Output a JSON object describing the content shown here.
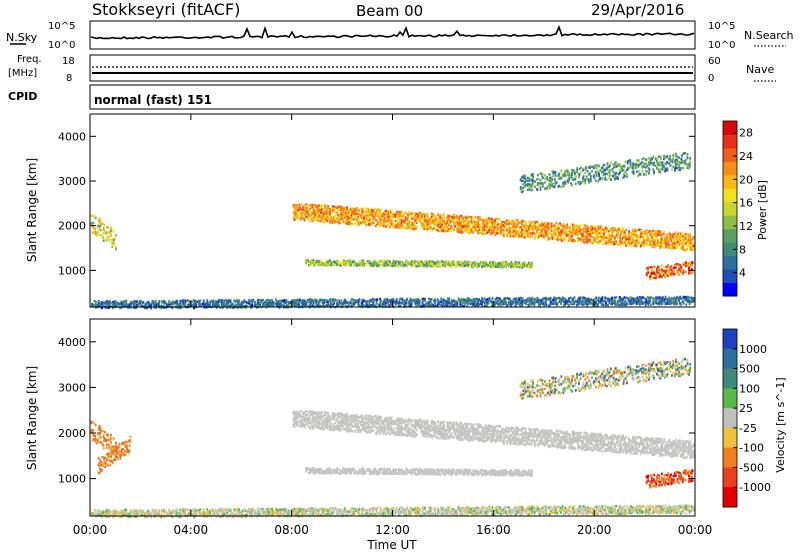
{
  "header": {
    "station": "Stokkseyri (fitACF)",
    "beam": "Beam 00",
    "date": "29/Apr/2016"
  },
  "noise_panel": {
    "left_label": "N.Sky",
    "right_label": "N.Search",
    "left_ticks": [
      "10^5",
      "10^0"
    ],
    "right_ticks": [
      "10^5",
      "10^0"
    ]
  },
  "freq_panel": {
    "left_label_1": "Freq.",
    "left_label_2": "[MHz]",
    "left_ticks": [
      "18",
      "8"
    ],
    "right_label": "Nave",
    "right_ticks": [
      "60",
      "0"
    ]
  },
  "cpid": {
    "label": "CPID",
    "value": "normal (fast) 151"
  },
  "chart_data": [
    {
      "type": "heatmap",
      "title": "Power",
      "ylabel": "Slant Range [km]",
      "xlabel": "",
      "x_ticks": [
        "00:00",
        "04:00",
        "08:00",
        "12:00",
        "16:00",
        "20:00",
        "00:00"
      ],
      "x_range_hours": [
        0,
        24
      ],
      "y_ticks": [
        1000,
        2000,
        3000,
        4000
      ],
      "ylim": [
        180,
        4500
      ],
      "colorbar": {
        "label": "Power [dB]",
        "ticks": [
          4,
          8,
          12,
          16,
          20,
          24,
          28
        ],
        "range": [
          0,
          30
        ],
        "colors": [
          "#0000ff",
          "#1d4fb7",
          "#2f6f9e",
          "#3f8a78",
          "#58a060",
          "#8cc044",
          "#c8d430",
          "#f0e020",
          "#f8b818",
          "#f89018",
          "#f06018",
          "#e83018",
          "#d80808"
        ]
      },
      "features": [
        {
          "name": "main band",
          "t_start": 8.0,
          "t_end": 24.0,
          "range_start_km": 2350,
          "range_end_km": 1650,
          "power_db": [
            16,
            26
          ]
        },
        {
          "name": "lower band",
          "t_start": 8.5,
          "t_end": 17.5,
          "range_start_km": 1200,
          "range_end_km": 1150,
          "power_db": [
            8,
            18
          ]
        },
        {
          "name": "upper sporadic",
          "t_start": 17.0,
          "t_end": 23.8,
          "range_start_km": 2950,
          "range_end_km": 3500,
          "power_db": [
            4,
            14
          ]
        },
        {
          "name": "early patch",
          "t_start": 0.0,
          "t_end": 1.0,
          "range_start_km": 2100,
          "range_end_km": 1700,
          "power_db": [
            10,
            22
          ]
        },
        {
          "name": "late strong",
          "t_start": 22.0,
          "t_end": 23.9,
          "range_start_km": 950,
          "range_end_km": 1100,
          "power_db": [
            18,
            30
          ]
        },
        {
          "name": "ground scatter",
          "t_start": 0.0,
          "t_end": 24.0,
          "range_start_km": 250,
          "range_end_km": 350,
          "power_db": [
            2,
            10
          ]
        }
      ]
    },
    {
      "type": "heatmap",
      "title": "Velocity",
      "ylabel": "Slant Range [km]",
      "xlabel": "Time UT",
      "x_ticks": [
        "00:00",
        "04:00",
        "08:00",
        "12:00",
        "16:00",
        "20:00",
        "00:00"
      ],
      "x_range_hours": [
        0,
        24
      ],
      "y_ticks": [
        1000,
        2000,
        3000,
        4000
      ],
      "ylim": [
        180,
        4500
      ],
      "colorbar": {
        "label": "Velocity [m s^-1]",
        "ticks": [
          1000,
          500,
          100,
          25,
          -25,
          -100,
          -500,
          -1000
        ],
        "colors": [
          "#2040c0",
          "#2f6f9e",
          "#3f8a78",
          "#5ab84a",
          "#c0c0c0",
          "#f0c040",
          "#f08020",
          "#e84020",
          "#e00000"
        ]
      },
      "features": [
        {
          "name": "main band",
          "t_start": 8.0,
          "t_end": 24.0,
          "range_start_km": 2350,
          "range_end_km": 1650,
          "velocity": "ground scatter (~0)"
        },
        {
          "name": "lower band",
          "t_start": 8.5,
          "t_end": 17.5,
          "range_start_km": 1200,
          "range_end_km": 1150,
          "velocity": "ground scatter (~0)"
        },
        {
          "name": "early patch",
          "t_start": 0.3,
          "t_end": 1.6,
          "range_start_km": 1300,
          "range_end_km": 1800,
          "velocity": "-100 to -500"
        },
        {
          "name": "late strong",
          "t_start": 22.0,
          "t_end": 23.9,
          "range_start_km": 950,
          "range_end_km": 1100,
          "velocity": "-500 to -1000"
        }
      ]
    }
  ]
}
